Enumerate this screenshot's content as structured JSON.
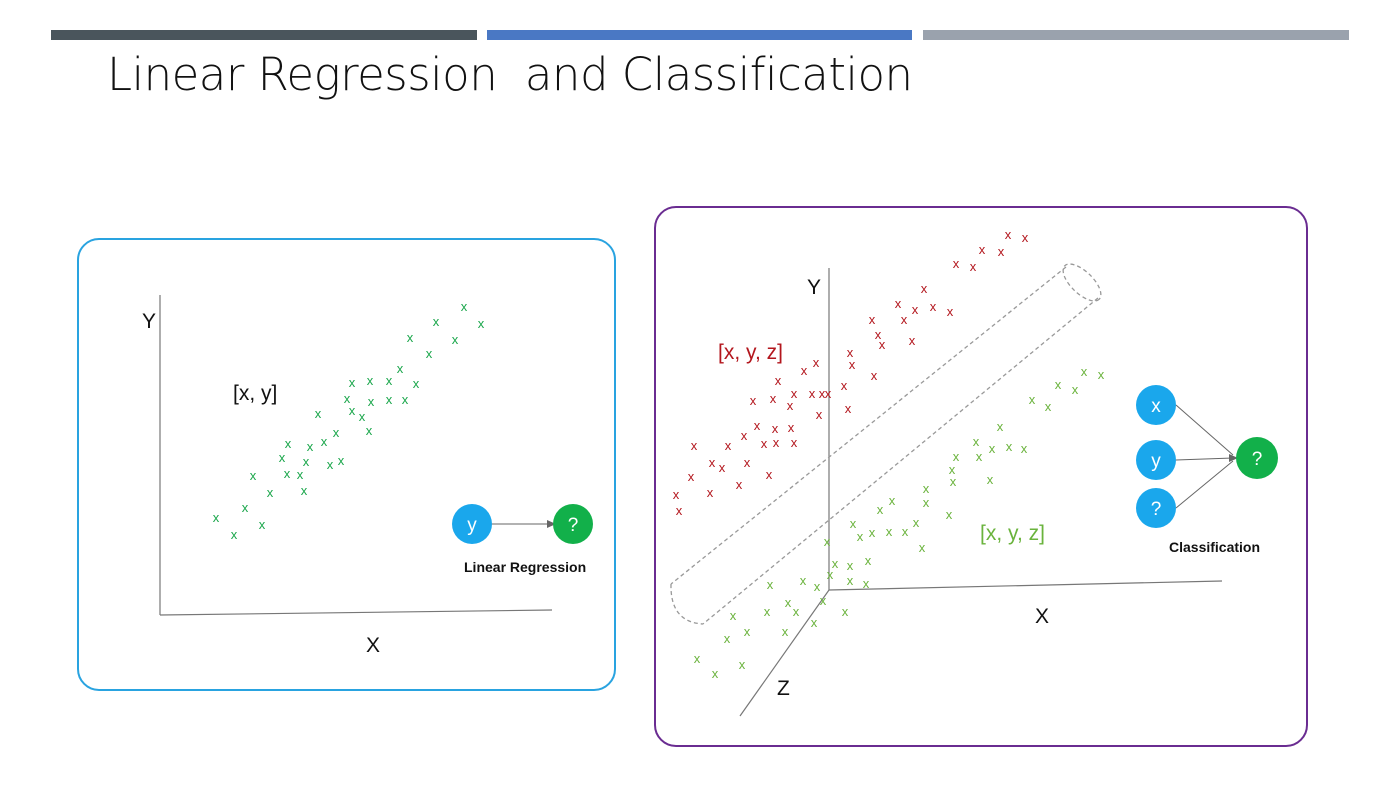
{
  "slide": {
    "title": "Linear Regression  and Classification",
    "colors": {
      "bar1": "#4a555c",
      "bar2": "#4a78c4",
      "bar3": "#9aa2ad",
      "left_border": "#29a3e0",
      "right_border": "#6a2c91",
      "node_blue": "#1aa7ec",
      "node_green": "#12b04a",
      "green_x": "#19a64a",
      "dark_red": "#b3161d",
      "olive_green": "#6ab33c"
    }
  },
  "regression": {
    "axis_y": "Y",
    "axis_x": "X",
    "point_label": "[x, y]",
    "marker": "x",
    "node_input": "y",
    "node_output": "?",
    "caption": "Linear Regression"
  },
  "classification": {
    "axis_y": "Y",
    "axis_x": "X",
    "axis_z": "Z",
    "red_label": "[x, y, z]",
    "green_label": "[x, y, z]",
    "marker": "x",
    "node_x": "x",
    "node_y": "y",
    "node_q": "?",
    "node_output": "?",
    "caption": "Classification"
  }
}
